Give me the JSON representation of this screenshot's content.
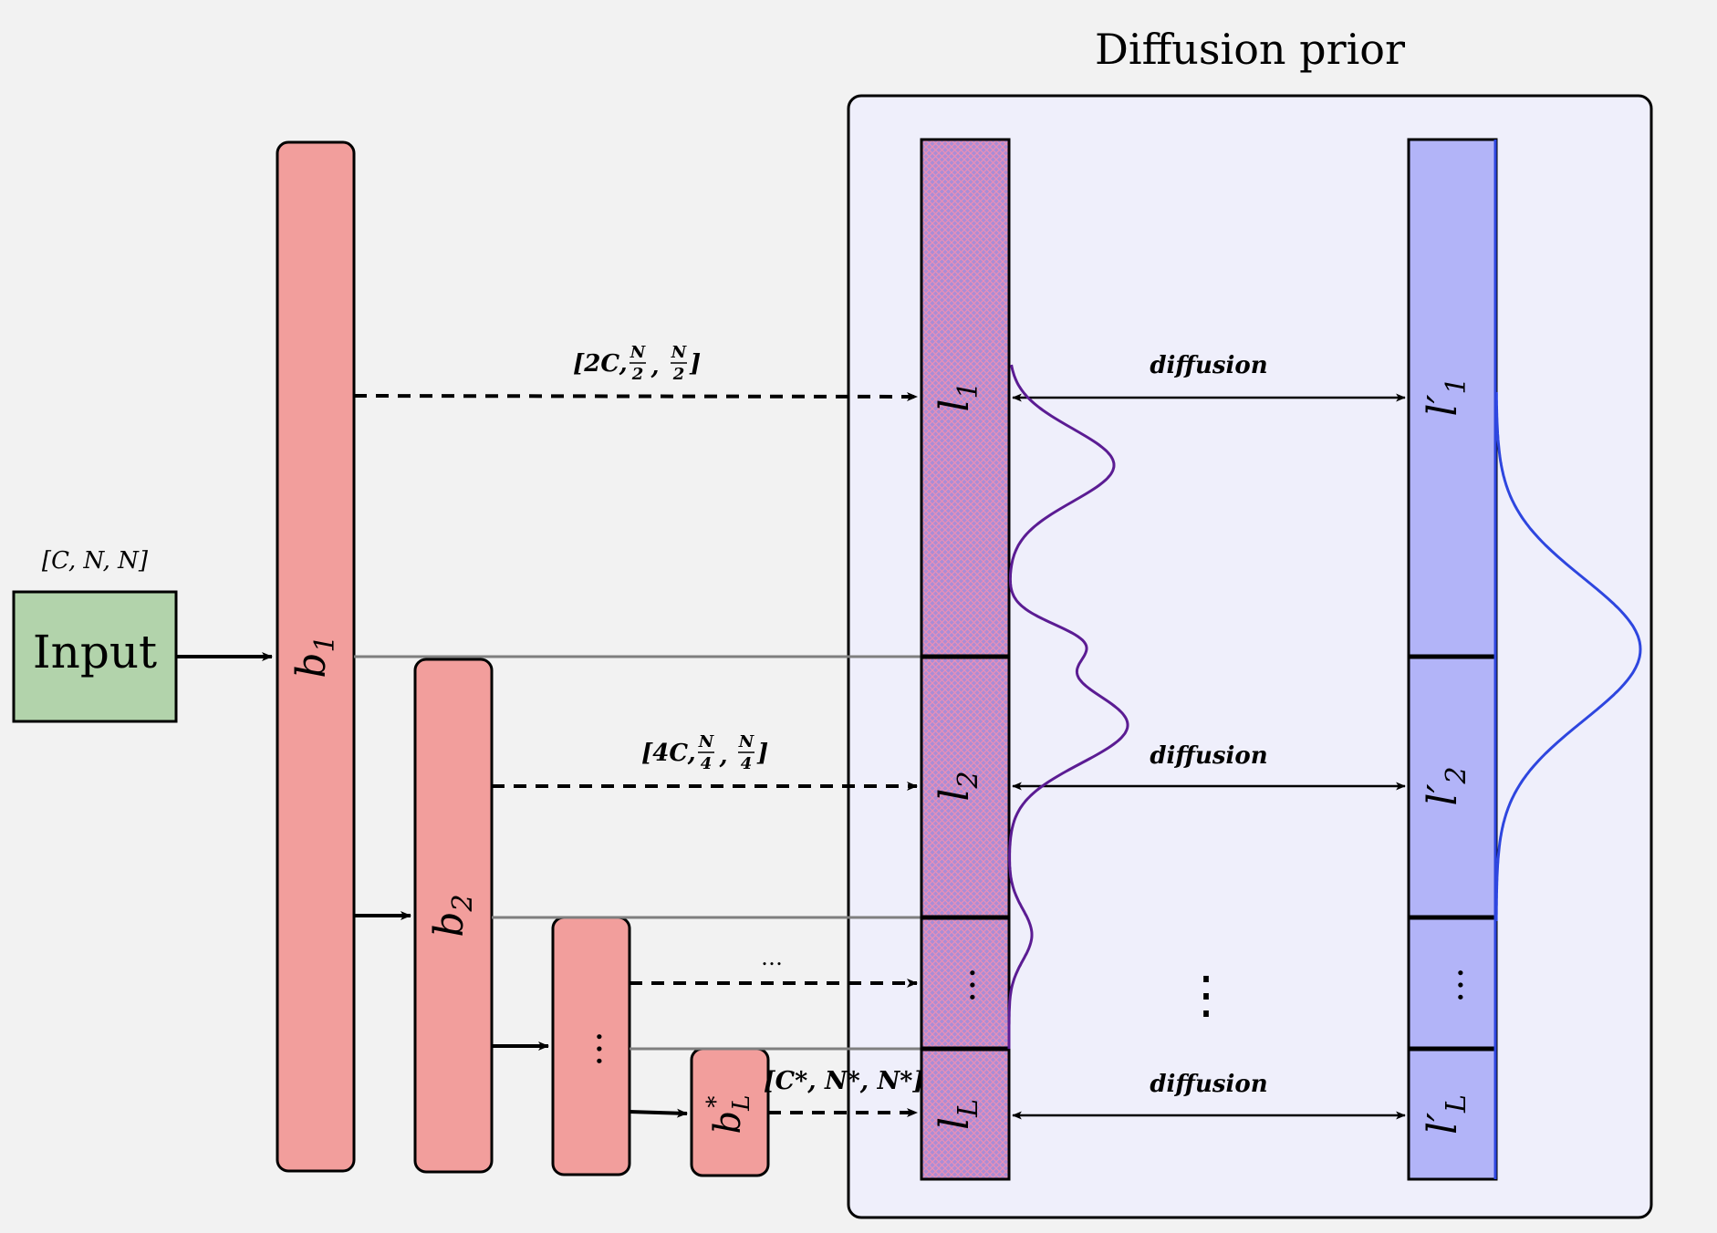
{
  "title": "Diffusion prior",
  "input": {
    "label": "Input",
    "shape": "[C, N, N]"
  },
  "encoder_blocks": [
    {
      "id": "b1",
      "main": "b",
      "sub": "1"
    },
    {
      "id": "b2",
      "main": "b",
      "sub": "2"
    },
    {
      "id": "b3",
      "main": "…",
      "sub": ""
    },
    {
      "id": "bL",
      "main": "b",
      "sub": "L",
      "sup": "*"
    }
  ],
  "skip_connections": [
    {
      "shape": "[2C, N/2, N/2]",
      "c": "[2C, ",
      "n1": "N",
      "d1": "2",
      "n2": "N",
      "d2": "2"
    },
    {
      "shape": "[4C, N/4, N/4]",
      "c": "[4C, ",
      "n1": "N",
      "d1": "4",
      "n2": "N",
      "d2": "4"
    },
    {
      "shape": "…"
    },
    {
      "shape": "[C*, N*, N*]"
    }
  ],
  "latents": [
    {
      "main": "l",
      "sub": "1"
    },
    {
      "main": "l",
      "sub": "2"
    },
    {
      "main": "…",
      "sub": ""
    },
    {
      "main": "l",
      "sub": "L"
    }
  ],
  "latents_prime": [
    {
      "main": "l′",
      "sub": "1"
    },
    {
      "main": "l′",
      "sub": "2"
    },
    {
      "main": "…",
      "sub": ""
    },
    {
      "main": "l′",
      "sub": "L"
    }
  ],
  "diffusion_labels": [
    "diffusion",
    "diffusion",
    "diffusion"
  ],
  "middle_dots": "⋮",
  "colors": {
    "background": "#f2f2f2",
    "input_fill": "#b2d3ab",
    "block_fill": "#f29e9c",
    "prior_panel": "#efeffb",
    "latent_fill": "#a98dd6",
    "latent_hatch": "#ea8fb6",
    "latent_prime_fill": "#b2b4f8",
    "curve_left": "#5b1c93",
    "curve_right": "#2e46df",
    "connector": "#7f7f7f"
  }
}
